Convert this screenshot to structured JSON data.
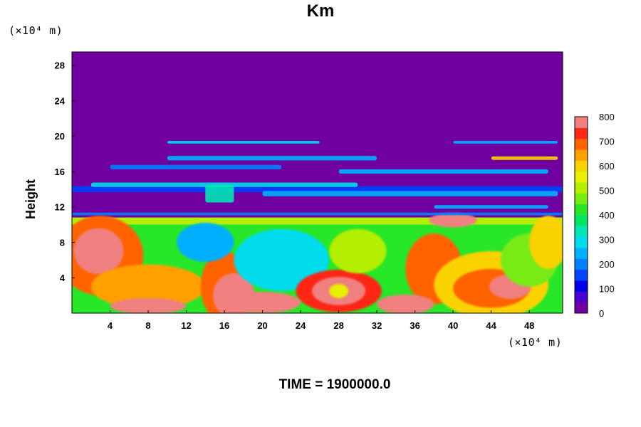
{
  "chart_data": {
    "type": "heatmap",
    "title": "Km",
    "ylabel": "Height",
    "xlabel": "",
    "x_unit": "(×10⁴ m)",
    "y_unit": "(×10⁴ m)",
    "x_ticks": [
      4,
      8,
      12,
      16,
      20,
      24,
      28,
      32,
      36,
      40,
      44,
      48
    ],
    "y_ticks": [
      4,
      8,
      12,
      16,
      20,
      24,
      28
    ],
    "xlim": [
      0,
      51.5
    ],
    "ylim": [
      0,
      29.5
    ],
    "colorbar": {
      "min": 0,
      "max": 800,
      "step": 50,
      "tick_labels": [
        0,
        100,
        200,
        300,
        400,
        500,
        600,
        700,
        800
      ],
      "colors": [
        "#7000a0",
        "#4a00d0",
        "#0000e6",
        "#0040ff",
        "#0080ff",
        "#00b0ff",
        "#00dcec",
        "#00e6b4",
        "#00e664",
        "#28e628",
        "#78ea14",
        "#b4ee00",
        "#e6f000",
        "#fad200",
        "#ffa000",
        "#ff6400",
        "#ff2814",
        "#f08080"
      ]
    },
    "summary": {
      "stable_layer_above_height": 20,
      "stable_value": 0,
      "turbulent_layer_top_height": 10.5,
      "peak_value": 800,
      "eddies": [
        {
          "x": 3,
          "y": 7,
          "value": 800
        },
        {
          "x": 28,
          "y": 2.5,
          "value": 800
        },
        {
          "x": 44,
          "y": 3,
          "value": 750
        }
      ]
    },
    "time_label": "TIME = 1900000.0"
  }
}
